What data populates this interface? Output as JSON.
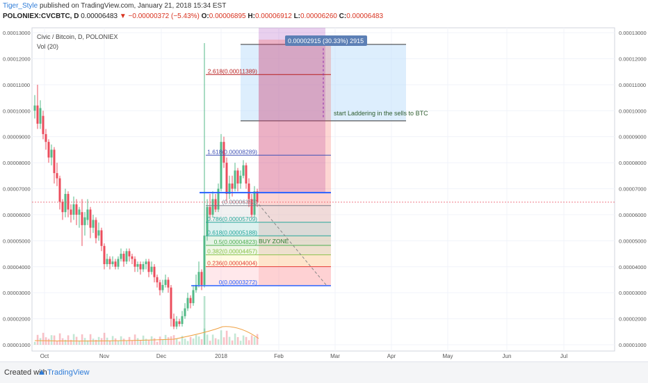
{
  "header": {
    "author": "Tiger_Style",
    "published_text": "published on TradingView.com, January 21, 2018 15:34 EST",
    "symbol": "POLONIEX:CVCBTC, D",
    "close_value": "0.00006483",
    "change_arrow": "▼",
    "change": "−0.00000372 (−5.43%)",
    "open_label": "O:",
    "open": "0.00006895",
    "high_label": "H:",
    "high": "0.00006912",
    "low_label": "L:",
    "low": "0.00006260",
    "close_label": "C:",
    "close": "0.00006483"
  },
  "legend": {
    "title": "Civic / Bitcoin, D, POLONIEX",
    "volume": "Vol (20)"
  },
  "colors": {
    "up": "#53b987",
    "down": "#eb4d5c",
    "fib_blue": "#2962ff",
    "box_blue": "#bbdefb",
    "purple": "#9c27b0",
    "red_zone": "#f44336"
  },
  "chart_data": {
    "type": "candlestick",
    "y_axis_ticks": [
      "0.00013000",
      "0.00012000",
      "0.00011000",
      "0.00010000",
      "0.00009000",
      "0.00008000",
      "0.00007000",
      "0.00006000",
      "0.00005000",
      "0.00004000",
      "0.00003000",
      "0.00002000",
      "0.00001000"
    ],
    "x_axis_ticks": [
      "Oct",
      "Nov",
      "Dec",
      "2018",
      "Feb",
      "Mar",
      "Apr",
      "May",
      "Jun",
      "Jul"
    ],
    "current_price": 6.483e-05,
    "fib_levels": [
      {
        "label": "2.618(0.00011389)",
        "value": 0.00011389,
        "color": "#b71c1c"
      },
      {
        "label": "1.618(0.00008289)",
        "value": 8.289e-05,
        "color": "#3f51b5"
      },
      {
        "label": "(0.00006353)",
        "value": 6.353e-05,
        "color": "#787b86"
      },
      {
        "label": "0.786(0.00005709)",
        "value": 5.709e-05,
        "color": "#26a69a"
      },
      {
        "label": "0.618(0.00005188)",
        "value": 5.188e-05,
        "color": "#26a69a"
      },
      {
        "label": "0.5(0.00004823)",
        "value": 4.823e-05,
        "color": "#4caf50"
      },
      {
        "label": "0.382(0.00004457)",
        "value": 4.457e-05,
        "color": "#8bc34a"
      },
      {
        "label": "0.236(0.00004004)",
        "value": 4.004e-05,
        "color": "#e53935"
      },
      {
        "label": "0(0.00003272)",
        "value": 3.272e-05,
        "color": "#2962ff"
      }
    ],
    "annotations": {
      "measure_label": "0.00002915 (30.33%) 2915",
      "sell_text": "start Laddering in the sells to BTC",
      "buy_zone": "BUY ZONE",
      "resistance_level": 6.85e-05,
      "sell_box_top": 0.0001255,
      "sell_box_bottom": 9.61e-05,
      "projection_end": 3.272e-05
    },
    "candles": [
      {
        "x": 50,
        "o": 0.0001,
        "c": 0.000102,
        "h": 0.000106,
        "l": 9.7e-05
      },
      {
        "x": 54,
        "o": 0.000102,
        "c": 9.5e-05,
        "h": 0.00011,
        "l": 9.3e-05
      },
      {
        "x": 58,
        "o": 9.5e-05,
        "c": 0.000101,
        "h": 0.000104,
        "l": 9.3e-05
      },
      {
        "x": 62,
        "o": 9.8e-05,
        "c": 9.1e-05,
        "h": 0.0001,
        "l": 8.9e-05
      },
      {
        "x": 66,
        "o": 9.1e-05,
        "c": 8.8e-05,
        "h": 9.3e-05,
        "l": 8.5e-05
      },
      {
        "x": 70,
        "o": 8.8e-05,
        "c": 8.2e-05,
        "h": 8.9e-05,
        "l": 8e-05
      },
      {
        "x": 74,
        "o": 8.2e-05,
        "c": 8.5e-05,
        "h": 8.7e-05,
        "l": 7.9e-05
      },
      {
        "x": 78,
        "o": 8.5e-05,
        "c": 7.6e-05,
        "h": 8.6e-05,
        "l": 7.2e-05
      },
      {
        "x": 82,
        "o": 7.6e-05,
        "c": 7.4e-05,
        "h": 8e-05,
        "l": 7.1e-05
      },
      {
        "x": 86,
        "o": 7.4e-05,
        "c": 6.5e-05,
        "h": 7.5e-05,
        "l": 6.2e-05
      },
      {
        "x": 90,
        "o": 6.5e-05,
        "c": 6.1e-05,
        "h": 6.6e-05,
        "l": 5.8e-05
      },
      {
        "x": 94,
        "o": 6.1e-05,
        "c": 6.8e-05,
        "h": 7e-05,
        "l": 5.9e-05
      },
      {
        "x": 98,
        "o": 6.8e-05,
        "c": 6.2e-05,
        "h": 6.9e-05,
        "l": 5.9e-05
      },
      {
        "x": 102,
        "o": 6.2e-05,
        "c": 6e-05,
        "h": 6.4e-05,
        "l": 5.7e-05
      },
      {
        "x": 106,
        "o": 6e-05,
        "c": 6.4e-05,
        "h": 6.7e-05,
        "l": 5.8e-05
      },
      {
        "x": 110,
        "o": 6.4e-05,
        "c": 6e-05,
        "h": 6.6e-05,
        "l": 5.6e-05
      },
      {
        "x": 114,
        "o": 6e-05,
        "c": 6.2e-05,
        "h": 6.3e-05,
        "l": 5.5e-05
      },
      {
        "x": 118,
        "o": 6.1e-05,
        "c": 5.6e-05,
        "h": 6.6e-05,
        "l": 4.8e-05
      },
      {
        "x": 122,
        "o": 5.6e-05,
        "c": 5.9e-05,
        "h": 6.1e-05,
        "l": 5.2e-05
      },
      {
        "x": 126,
        "o": 5.8e-05,
        "c": 6.2e-05,
        "h": 6.6e-05,
        "l": 5.6e-05
      },
      {
        "x": 130,
        "o": 6.2e-05,
        "c": 5.5e-05,
        "h": 6.3e-05,
        "l": 5.1e-05
      },
      {
        "x": 134,
        "o": 5.5e-05,
        "c": 5.8e-05,
        "h": 6e-05,
        "l": 5.3e-05
      },
      {
        "x": 138,
        "o": 5.8e-05,
        "c": 5.1e-05,
        "h": 5.9e-05,
        "l": 4.9e-05
      },
      {
        "x": 142,
        "o": 5.2e-05,
        "c": 5.4e-05,
        "h": 5.7e-05,
        "l": 5e-05
      },
      {
        "x": 146,
        "o": 5.4e-05,
        "c": 4.8e-05,
        "h": 5.5e-05,
        "l": 4.6e-05
      },
      {
        "x": 150,
        "o": 4.8e-05,
        "c": 4.1e-05,
        "h": 4.9e-05,
        "l": 3.9e-05
      },
      {
        "x": 154,
        "o": 4.1e-05,
        "c": 4.3e-05,
        "h": 4.5e-05,
        "l": 4e-05
      },
      {
        "x": 158,
        "o": 4.3e-05,
        "c": 4.1e-05,
        "h": 4.4e-05,
        "l": 3.9e-05
      },
      {
        "x": 162,
        "o": 4.1e-05,
        "c": 4.2e-05,
        "h": 4.4e-05,
        "l": 4e-05
      },
      {
        "x": 166,
        "o": 4.2e-05,
        "c": 4e-05,
        "h": 4.3e-05,
        "l": 3.9e-05
      },
      {
        "x": 170,
        "o": 4e-05,
        "c": 4.3e-05,
        "h": 4.4e-05,
        "l": 3.9e-05
      },
      {
        "x": 174,
        "o": 4.3e-05,
        "c": 4.5e-05,
        "h": 4.7e-05,
        "l": 4.2e-05
      },
      {
        "x": 178,
        "o": 4.5e-05,
        "c": 4.2e-05,
        "h": 4.6e-05,
        "l": 4e-05
      },
      {
        "x": 182,
        "o": 4.2e-05,
        "c": 4.6e-05,
        "h": 4.7e-05,
        "l": 4.1e-05
      },
      {
        "x": 186,
        "o": 4.6e-05,
        "c": 4.4e-05,
        "h": 4.7e-05,
        "l": 4.2e-05
      },
      {
        "x": 190,
        "o": 4.4e-05,
        "c": 4.3e-05,
        "h": 4.5e-05,
        "l": 4.1e-05
      },
      {
        "x": 194,
        "o": 4.3e-05,
        "c": 4e-05,
        "h": 4.4e-05,
        "l": 3.8e-05
      },
      {
        "x": 198,
        "o": 4e-05,
        "c": 4.1e-05,
        "h": 4.2e-05,
        "l": 3.8e-05
      },
      {
        "x": 202,
        "o": 4.1e-05,
        "c": 3.9e-05,
        "h": 4.2e-05,
        "l": 3.7e-05
      },
      {
        "x": 206,
        "o": 3.9e-05,
        "c": 4.1e-05,
        "h": 4.2e-05,
        "l": 3.8e-05
      },
      {
        "x": 210,
        "o": 4.1e-05,
        "c": 4.2e-05,
        "h": 4.3e-05,
        "l": 3.9e-05
      },
      {
        "x": 214,
        "o": 4.2e-05,
        "c": 3.8e-05,
        "h": 4.3e-05,
        "l": 3.6e-05
      },
      {
        "x": 218,
        "o": 3.8e-05,
        "c": 4e-05,
        "h": 4.2e-05,
        "l": 3.7e-05
      },
      {
        "x": 222,
        "o": 4e-05,
        "c": 3.6e-05,
        "h": 4.1e-05,
        "l": 3.4e-05
      },
      {
        "x": 226,
        "o": 3.6e-05,
        "c": 3.4e-05,
        "h": 3.7e-05,
        "l": 3.2e-05
      },
      {
        "x": 230,
        "o": 3.4e-05,
        "c": 3.1e-05,
        "h": 3.5e-05,
        "l": 2.9e-05
      },
      {
        "x": 234,
        "o": 3.1e-05,
        "c": 3.3e-05,
        "h": 3.5e-05,
        "l": 3e-05
      },
      {
        "x": 238,
        "o": 3.3e-05,
        "c": 3.5e-05,
        "h": 3.7e-05,
        "l": 3.2e-05
      },
      {
        "x": 242,
        "o": 3.5e-05,
        "c": 3.2e-05,
        "h": 3.6e-05,
        "l": 3e-05
      },
      {
        "x": 246,
        "o": 3.2e-05,
        "c": 2e-05,
        "h": 3.3e-05,
        "l": 1.7e-05
      },
      {
        "x": 250,
        "o": 2e-05,
        "c": 1.7e-05,
        "h": 2.2e-05,
        "l": 1.6e-05
      },
      {
        "x": 254,
        "o": 1.7e-05,
        "c": 1.9e-05,
        "h": 2.1e-05,
        "l": 1.6e-05
      },
      {
        "x": 258,
        "o": 1.9e-05,
        "c": 1.8e-05,
        "h": 2e-05,
        "l": 1.7e-05
      },
      {
        "x": 262,
        "o": 1.8e-05,
        "c": 2.1e-05,
        "h": 2.3e-05,
        "l": 1.7e-05
      },
      {
        "x": 266,
        "o": 2.1e-05,
        "c": 2.4e-05,
        "h": 2.6e-05,
        "l": 2e-05
      },
      {
        "x": 270,
        "o": 2.4e-05,
        "c": 2.8e-05,
        "h": 3e-05,
        "l": 2.3e-05
      },
      {
        "x": 274,
        "o": 2.8e-05,
        "c": 2.6e-05,
        "h": 2.9e-05,
        "l": 2.4e-05
      },
      {
        "x": 278,
        "o": 2.6e-05,
        "c": 3.1e-05,
        "h": 3.3e-05,
        "l": 2.5e-05
      },
      {
        "x": 282,
        "o": 3.1e-05,
        "c": 3.3e-05,
        "h": 3.7e-05,
        "l": 3e-05
      },
      {
        "x": 286,
        "o": 3.3e-05,
        "c": 3.8e-05,
        "h": 4.2e-05,
        "l": 3.2e-05
      },
      {
        "x": 290,
        "o": 3.8e-05,
        "c": 3.3e-05,
        "h": 3.9e-05,
        "l": 3.1e-05
      },
      {
        "x": 294,
        "o": 3.3e-05,
        "c": 5.2e-05,
        "h": 0.000126,
        "l": 3.2e-05
      },
      {
        "x": 298,
        "o": 5.2e-05,
        "c": 6.3e-05,
        "h": 6.6e-05,
        "l": 5e-05
      },
      {
        "x": 302,
        "o": 6.3e-05,
        "c": 6e-05,
        "h": 6.8e-05,
        "l": 5.8e-05
      },
      {
        "x": 306,
        "o": 6e-05,
        "c": 6.6e-05,
        "h": 6.9e-05,
        "l": 5.9e-05
      },
      {
        "x": 310,
        "o": 6.6e-05,
        "c": 6.2e-05,
        "h": 6.8e-05,
        "l": 6.1e-05
      },
      {
        "x": 314,
        "o": 6.2e-05,
        "c": 7e-05,
        "h": 7.2e-05,
        "l": 6.1e-05
      },
      {
        "x": 318,
        "o": 7e-05,
        "c": 8.8e-05,
        "h": 9.1e-05,
        "l": 6.9e-05
      },
      {
        "x": 322,
        "o": 8.8e-05,
        "c": 8e-05,
        "h": 9e-05,
        "l": 7.8e-05
      },
      {
        "x": 326,
        "o": 8e-05,
        "c": 6.8e-05,
        "h": 8.2e-05,
        "l": 6.5e-05
      },
      {
        "x": 330,
        "o": 6.8e-05,
        "c": 7.2e-05,
        "h": 7.5e-05,
        "l": 6.6e-05
      },
      {
        "x": 334,
        "o": 7.2e-05,
        "c": 7e-05,
        "h": 7.5e-05,
        "l": 6.7e-05
      },
      {
        "x": 338,
        "o": 7e-05,
        "c": 7.7e-05,
        "h": 8e-05,
        "l": 6.9e-05
      },
      {
        "x": 342,
        "o": 7.7e-05,
        "c": 7.2e-05,
        "h": 7.8e-05,
        "l": 6.9e-05
      },
      {
        "x": 346,
        "o": 7.2e-05,
        "c": 7.5e-05,
        "h": 7.7e-05,
        "l": 7e-05
      },
      {
        "x": 350,
        "o": 7.5e-05,
        "c": 7.9e-05,
        "h": 8.1e-05,
        "l": 7.4e-05
      },
      {
        "x": 354,
        "o": 7.9e-05,
        "c": 7.2e-05,
        "h": 8e-05,
        "l": 7e-05
      },
      {
        "x": 358,
        "o": 7.2e-05,
        "c": 6.6e-05,
        "h": 7.4e-05,
        "l": 6.3e-05
      },
      {
        "x": 362,
        "o": 6.6e-05,
        "c": 6e-05,
        "h": 6.8e-05,
        "l": 5.9e-05
      },
      {
        "x": 366,
        "o": 6e-05,
        "c": 6.9e-05,
        "h": 7.1e-05,
        "l": 5.9e-05
      },
      {
        "x": 370,
        "o": 6.9e-05,
        "c": 6.5e-05,
        "h": 7e-05,
        "l": 6.3e-05
      }
    ]
  }
}
